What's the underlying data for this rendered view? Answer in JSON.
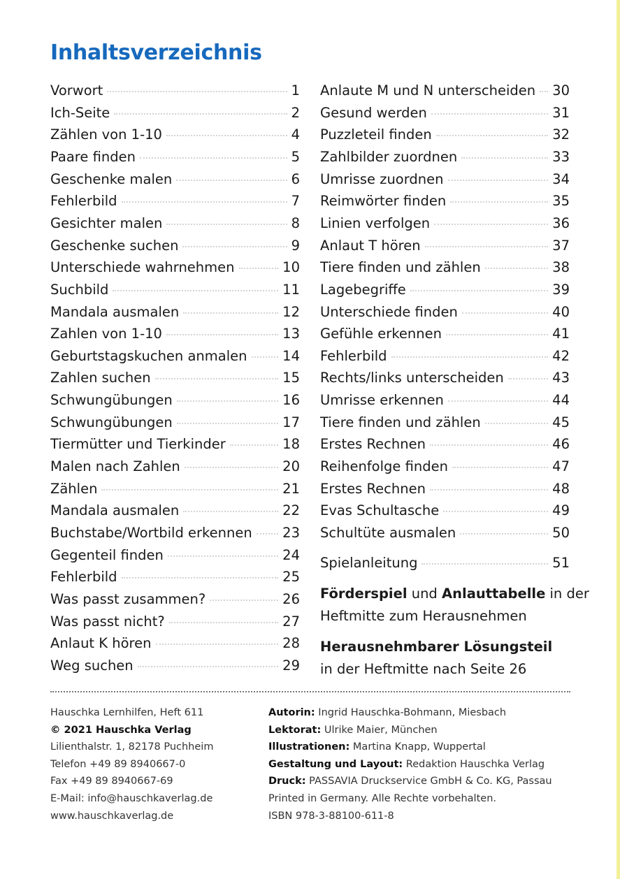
{
  "header": {
    "title": "Inhaltsverzeichnis"
  },
  "toc_left": [
    {
      "label": "Vorwort",
      "page": "1"
    },
    {
      "label": "Ich-Seite",
      "page": "2"
    },
    {
      "label": "Zählen von 1-10",
      "page": "4"
    },
    {
      "label": "Paare finden",
      "page": "5"
    },
    {
      "label": "Geschenke malen",
      "page": "6"
    },
    {
      "label": "Fehlerbild",
      "page": "7"
    },
    {
      "label": "Gesichter malen",
      "page": "8"
    },
    {
      "label": "Geschenke suchen",
      "page": "9"
    },
    {
      "label": "Unterschiede wahrnehmen",
      "page": "10"
    },
    {
      "label": "Suchbild",
      "page": "11"
    },
    {
      "label": "Mandala ausmalen",
      "page": "12"
    },
    {
      "label": "Zahlen von 1-10",
      "page": "13"
    },
    {
      "label": "Geburtstagskuchen anmalen",
      "page": "14"
    },
    {
      "label": "Zahlen suchen",
      "page": "15"
    },
    {
      "label": "Schwungübungen",
      "page": "16"
    },
    {
      "label": "Schwungübungen",
      "page": "17"
    },
    {
      "label": "Tiermütter und Tierkinder",
      "page": "18"
    },
    {
      "label": "Malen nach Zahlen",
      "page": "20"
    },
    {
      "label": "Zählen",
      "page": "21"
    },
    {
      "label": "Mandala ausmalen",
      "page": "22"
    },
    {
      "label": "Buchstabe/Wortbild erkennen",
      "page": "23"
    },
    {
      "label": "Gegenteil finden",
      "page": "24"
    },
    {
      "label": "Fehlerbild",
      "page": "25"
    },
    {
      "label": "Was passt zusammen?",
      "page": "26"
    },
    {
      "label": "Was passt nicht?",
      "page": "27"
    },
    {
      "label": "Anlaut K hören",
      "page": "28"
    },
    {
      "label": "Weg suchen",
      "page": "29"
    }
  ],
  "toc_right": [
    {
      "label": "Anlaute M und N unterscheiden",
      "page": "30"
    },
    {
      "label": "Gesund werden",
      "page": "31"
    },
    {
      "label": "Puzzleteil finden",
      "page": "32"
    },
    {
      "label": "Zahlbilder zuordnen",
      "page": "33"
    },
    {
      "label": "Umrisse zuordnen",
      "page": "34"
    },
    {
      "label": "Reimwörter finden",
      "page": "35"
    },
    {
      "label": "Linien verfolgen",
      "page": "36"
    },
    {
      "label": "Anlaut T hören",
      "page": "37"
    },
    {
      "label": "Tiere finden und zählen",
      "page": "38"
    },
    {
      "label": "Lagebegriffe",
      "page": "39"
    },
    {
      "label": "Unterschiede finden",
      "page": "40"
    },
    {
      "label": "Gefühle erkennen",
      "page": "41"
    },
    {
      "label": "Fehlerbild",
      "page": "42"
    },
    {
      "label": "Rechts/links unterscheiden",
      "page": "43"
    },
    {
      "label": "Umrisse erkennen",
      "page": "44"
    },
    {
      "label": "Tiere finden und zählen",
      "page": "45"
    },
    {
      "label": "Erstes Rechnen",
      "page": "46"
    },
    {
      "label": "Reihenfolge finden",
      "page": "47"
    },
    {
      "label": "Erstes Rechnen",
      "page": "48"
    },
    {
      "label": "Evas Schultasche",
      "page": "49"
    },
    {
      "label": "Schultüte ausmalen",
      "page": "50"
    }
  ],
  "extra": {
    "label": "Spielanleitung",
    "page": "51"
  },
  "note1": {
    "bold1": "Förderspiel",
    "text1": "und",
    "bold2": "Anlauttabelle",
    "text2": "in der",
    "line2": "Heftmitte zum Herausnehmen"
  },
  "note2": {
    "bold": "Herausnehmbarer Lösungsteil",
    "line2": "in der Heftmitte nach Seite 26"
  },
  "imprint_left": [
    "Hauschka Lernhilfen, Heft 611",
    "© 2021 Hauschka Verlag",
    "Lilienthalstr. 1, 82178 Puchheim",
    "Telefon +49 89 8940667-0",
    "Fax +49 89 8940667-69",
    "E-Mail: info@hauschkaverlag.de",
    "www.hauschkaverlag.de"
  ],
  "imprint_right": [
    {
      "label": "Autorin:",
      "text": "Ingrid Hauschka-Bohmann, Miesbach"
    },
    {
      "label": "Lektorat:",
      "text": "Ulrike Maier, München"
    },
    {
      "label": "Illustrationen:",
      "text": "Martina Knapp, Wuppertal"
    },
    {
      "label": "Gestaltung und Layout:",
      "text": "Redaktion Hauschka Verlag"
    },
    {
      "label": "Druck:",
      "text": "PASSAVIA Druckservice GmbH & Co. KG, Passau"
    },
    {
      "text": "Printed in Germany. Alle Rechte vorbehalten."
    },
    {
      "text": "ISBN 978-3-88100-611-8"
    }
  ]
}
